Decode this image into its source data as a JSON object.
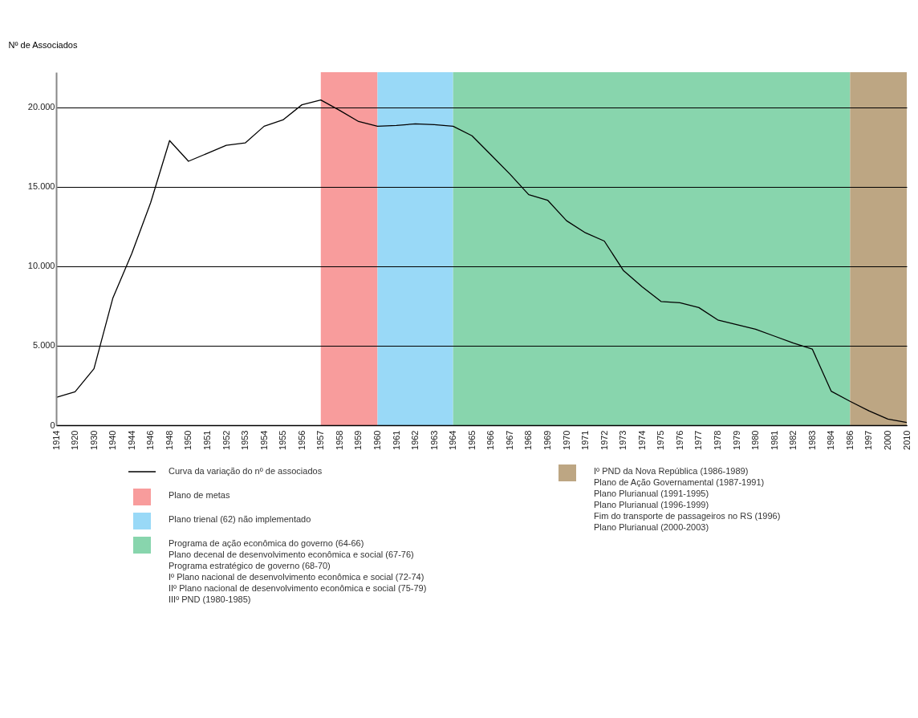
{
  "chart_data": {
    "type": "line",
    "ylabel": "Nº de Associados",
    "categories": [
      "1914",
      "1920",
      "1930",
      "1940",
      "1944",
      "1946",
      "1948",
      "1950",
      "1951",
      "1952",
      "1953",
      "1954",
      "1955",
      "1956",
      "1957",
      "1958",
      "1959",
      "1960",
      "1961",
      "1962",
      "1963",
      "1964",
      "1965",
      "1966",
      "1967",
      "1968",
      "1969",
      "1970",
      "1971",
      "1972",
      "1973",
      "1974",
      "1975",
      "1976",
      "1977",
      "1978",
      "1979",
      "1980",
      "1981",
      "1982",
      "1983",
      "1984",
      "1986",
      "1997",
      "2000",
      "2010"
    ],
    "series": [
      {
        "name": "Curva da variação do nº de associados",
        "color": "#000000",
        "values": [
          1750,
          2100,
          3550,
          8000,
          10800,
          14000,
          17900,
          16600,
          17100,
          17600,
          17750,
          18800,
          19200,
          20150,
          20450,
          19800,
          19100,
          18800,
          18850,
          18950,
          18900,
          18800,
          18200,
          17000,
          15800,
          14500,
          14150,
          12860,
          12100,
          11580,
          9740,
          8700,
          7780,
          7700,
          7400,
          6620,
          6320,
          6030,
          5600,
          5170,
          4790,
          2140,
          1500,
          900,
          380,
          170
        ]
      }
    ],
    "ylim": [
      0,
      22200
    ],
    "yticks": [
      {
        "value": 0,
        "label": "0"
      },
      {
        "value": 5000,
        "label": "5.000"
      },
      {
        "value": 10000,
        "label": "10.000"
      },
      {
        "value": 15000,
        "label": "15.000"
      },
      {
        "value": 20000,
        "label": "20.000"
      }
    ],
    "grid": "y",
    "legend": "bottom",
    "line_style": "solid",
    "bands": [
      {
        "axis": "x",
        "from": "1957",
        "to": "1960",
        "label": "Plano de metas",
        "color": "#f89c9c"
      },
      {
        "axis": "x",
        "from": "1960",
        "to": "1964",
        "label": "Plano trienal (62) não implementado",
        "color": "#99d9f7"
      },
      {
        "axis": "x",
        "from": "1964",
        "to": "1986",
        "label": "Programa de ação econômica do governo (64-66)\nPlano decenal de desenvolvimento econômica  e social (67-76)\nPrograma estratégico de governo (68-70)\nIº Plano nacional de desenvolvimento econômica  e social (72-74)\nIIº Plano nacional de desenvolvimento econômica  e social (75-79)\nIIIº PND (1980-1985)",
        "color": "#88d5ad"
      },
      {
        "axis": "x",
        "from": "1986",
        "to": "2010",
        "label": "Iº PND da Nova República (1986-1989)\nPlano de Ação Governamental (1987-1991)\nPlano Plurianual (1991-1995)\nPlano Plurianual (1996-1999)\nFim do transporte de passageiros no RS (1996)\nPlano Plurianual (2000-2003)",
        "color": "#bda683"
      }
    ]
  }
}
